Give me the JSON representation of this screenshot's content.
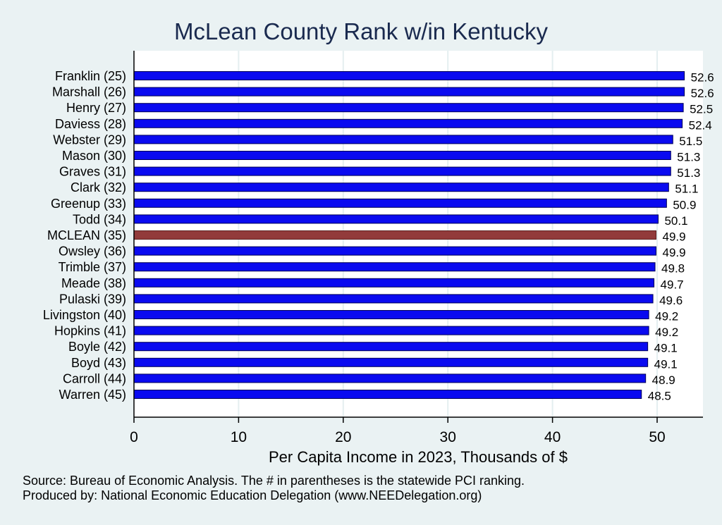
{
  "chart_data": {
    "type": "bar",
    "orientation": "horizontal",
    "title": "McLean County Rank w/in Kentucky",
    "xlabel": "Per Capita Income in 2023, Thousands of $",
    "ylabel": "",
    "xlim": [
      0,
      54.3
    ],
    "xticks": [
      0,
      10,
      20,
      30,
      40,
      50
    ],
    "grid": true,
    "categories": [
      "Franklin (25)",
      "Marshall (26)",
      "Henry (27)",
      "Daviess (28)",
      "Webster (29)",
      "Mason (30)",
      "Graves (31)",
      "Clark (32)",
      "Greenup (33)",
      "Todd (34)",
      "MCLEAN (35)",
      "Owsley (36)",
      "Trimble (37)",
      "Meade (38)",
      "Pulaski (39)",
      "Livingston (40)",
      "Hopkins (41)",
      "Boyle (42)",
      "Boyd (43)",
      "Carroll (44)",
      "Warren (45)"
    ],
    "values": [
      52.6,
      52.6,
      52.5,
      52.4,
      51.5,
      51.3,
      51.3,
      51.1,
      50.9,
      50.1,
      49.9,
      49.9,
      49.8,
      49.7,
      49.6,
      49.2,
      49.2,
      49.1,
      49.1,
      48.9,
      48.5
    ],
    "value_labels": [
      "52.6",
      "52.6",
      "52.5",
      "52.4",
      "51.5",
      "51.3",
      "51.3",
      "51.1",
      "50.9",
      "50.1",
      "49.9",
      "49.9",
      "49.8",
      "49.7",
      "49.6",
      "49.2",
      "49.2",
      "49.1",
      "49.1",
      "48.9",
      "48.5"
    ],
    "highlight": "MCLEAN (35)",
    "colors": {
      "bar": "#0a0af0",
      "highlight_bar": "#923b3b",
      "plot_background": "#ffffff",
      "page_background": "#eaf2f3",
      "grid": "#e4eef0",
      "title": "#1a2a4f"
    }
  },
  "notes": {
    "source": "Source: Bureau of Economic Analysis. The # in parentheses is the statewide PCI ranking.",
    "producer": "Produced by: National Economic Education Delegation (www.NEEDelegation.org)"
  }
}
